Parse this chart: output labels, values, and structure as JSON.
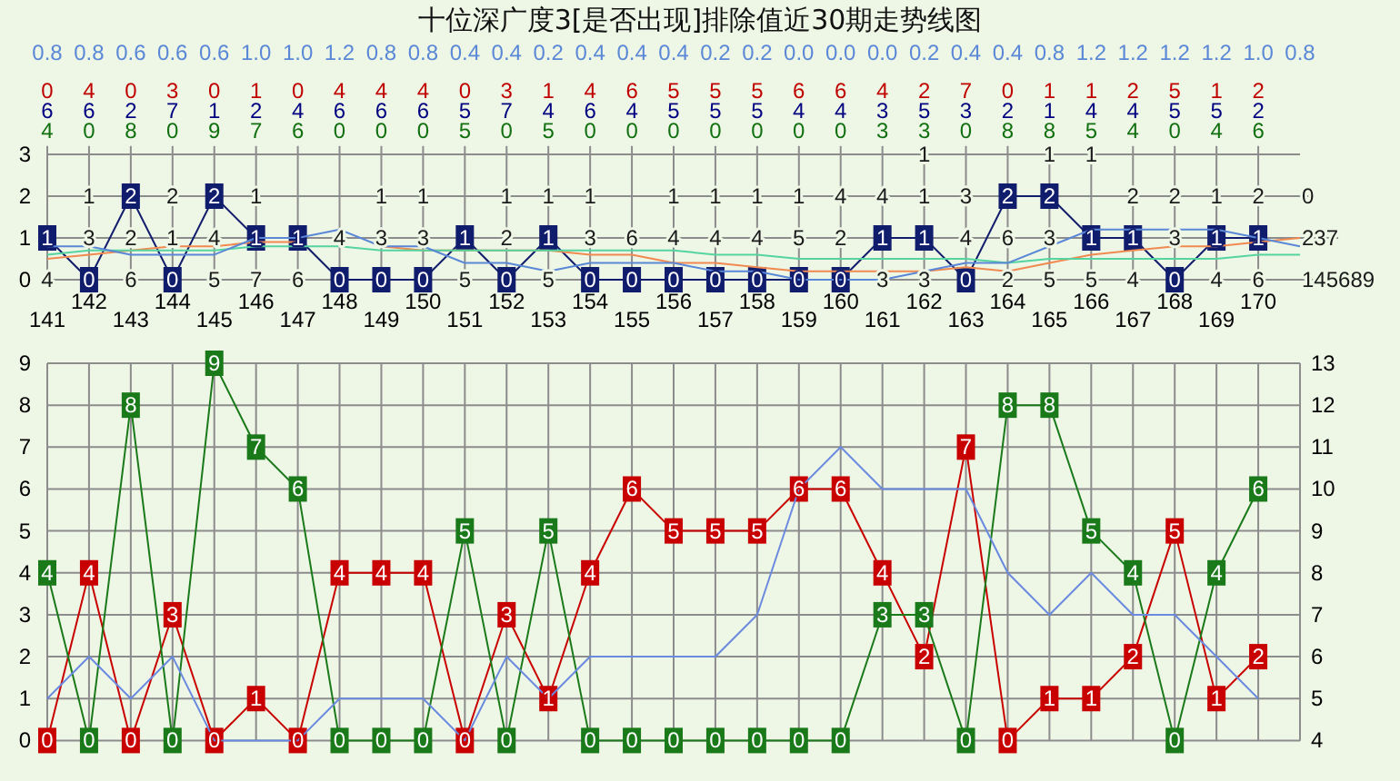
{
  "chart_data": [
    {
      "type": "line",
      "title": "十位深广度3[是否出现]排除值近30期走势线图",
      "categories": [
        "141",
        "142",
        "143",
        "144",
        "145",
        "146",
        "147",
        "148",
        "149",
        "150",
        "151",
        "152",
        "153",
        "154",
        "155",
        "156",
        "157",
        "158",
        "159",
        "160",
        "161",
        "162",
        "163",
        "164",
        "165",
        "166",
        "167",
        "168",
        "169",
        "170",
        null
      ],
      "ylim": [
        -0.2,
        3.2
      ],
      "yticks": [
        0,
        1,
        2,
        3
      ],
      "grid": "x",
      "data_labels": true,
      "ref_lines": [
        {
          "axis": "y",
          "value": 0
        },
        {
          "axis": "y",
          "value": 1
        },
        {
          "axis": "y",
          "value": 2
        },
        {
          "axis": "y",
          "value": 3
        }
      ],
      "series": [
        {
          "color": "#101c6c",
          "marker": "square",
          "values": [
            1,
            0,
            2,
            0,
            2,
            1,
            1,
            0,
            0,
            0,
            1,
            0,
            1,
            0,
            0,
            0,
            0,
            0,
            0,
            0,
            1,
            1,
            0,
            2,
            2,
            1,
            1,
            0,
            1,
            1,
            null
          ]
        },
        {
          "color": "#f08a50",
          "data_labels": false,
          "values": [
            0.5,
            0.6,
            0.7,
            0.8,
            0.8,
            0.9,
            0.9,
            null,
            0.8,
            0.7,
            0.7,
            0.7,
            0.7,
            0.6,
            0.6,
            0.4,
            0.4,
            0.3,
            0.2,
            0.2,
            0.2,
            0.2,
            0.3,
            0.2,
            0.4,
            0.6,
            0.7,
            0.8,
            0.8,
            0.9,
            1.0
          ]
        },
        {
          "color": "#55d4a0",
          "data_labels": false,
          "values": [
            0.6,
            0.7,
            0.7,
            0.7,
            0.7,
            0.8,
            0.8,
            0.8,
            0.7,
            0.7,
            0.7,
            0.7,
            0.7,
            0.7,
            0.7,
            0.7,
            0.6,
            0.6,
            0.5,
            0.5,
            0.5,
            0.5,
            0.5,
            0.4,
            0.5,
            0.5,
            0.5,
            0.5,
            0.5,
            0.6,
            0.6
          ]
        },
        {
          "color": "#5a88d6",
          "data_labels": false,
          "values": [
            0.8,
            0.8,
            0.6,
            0.6,
            0.6,
            1.0,
            1.0,
            1.2,
            0.8,
            0.8,
            0.4,
            0.4,
            0.2,
            0.4,
            0.4,
            0.4,
            0.2,
            0.2,
            0.0,
            0.0,
            0.0,
            0.2,
            0.4,
            0.4,
            0.8,
            1.2,
            1.2,
            1.2,
            1.2,
            1.0,
            0.8
          ],
          "value_labels": [
            "0.8",
            "0.8",
            "0.6",
            "0.6",
            "0.6",
            "1.0",
            "1.0",
            "1.2",
            "0.8",
            "0.8",
            "0.4",
            "0.4",
            "0.2",
            "0.4",
            "0.4",
            "0.4",
            "0.2",
            "0.2",
            "0.0",
            "0.0",
            "0.0",
            "0.2",
            "0.4",
            "0.4",
            "0.8",
            "1.2",
            "1.2",
            "1.2",
            "1.2",
            "1.0",
            "0.8"
          ]
        }
      ],
      "annotations": [
        "0 4 0 3 0 1 0 4 4 4 0 3 1 4 6 5 5 5 6 6 4 2 7 0 1 1 2 5 1 2",
        "6 6 2 7 1 2 4 6 6 6 5 7 4 6 4 5 5 5 4 4 3 5 3 2 1 4 4 5 5 2",
        "4 0 8 0 9 7 6 0 0 0 5 0 5 0 0 0 0 0 0 0 3 3 0 8 8 5 4 0 4 6",
        {
          "text": "4",
          "x": "141",
          "y": 0
        },
        {
          "text": "6",
          "x": "143",
          "y": 0
        },
        {
          "text": "5",
          "x": "145",
          "y": 0
        },
        {
          "text": "7",
          "x": "146",
          "y": 0
        },
        {
          "text": "6",
          "x": "147",
          "y": 0
        },
        {
          "text": "5",
          "x": "151",
          "y": 0
        },
        {
          "text": "5",
          "x": "153",
          "y": 0
        },
        {
          "text": "3",
          "x": "161",
          "y": 0
        },
        {
          "text": "3",
          "x": "162",
          "y": 0
        },
        {
          "text": "2",
          "x": "164",
          "y": 0
        },
        {
          "text": "5",
          "x": "165",
          "y": 0
        },
        {
          "text": "5",
          "x": "166",
          "y": 0
        },
        {
          "text": "4",
          "x": "167",
          "y": 0
        },
        {
          "text": "4",
          "x": "169",
          "y": 0
        },
        {
          "text": "6",
          "x": "170",
          "y": 0
        },
        {
          "text": "3",
          "x": "142",
          "y": 1
        },
        {
          "text": "2",
          "x": "143",
          "y": 1
        },
        {
          "text": "1",
          "x": "144",
          "y": 1
        },
        {
          "text": "4",
          "x": "145",
          "y": 1
        },
        {
          "text": "4",
          "x": "148",
          "y": 1
        },
        {
          "text": "3",
          "x": "149",
          "y": 1
        },
        {
          "text": "3",
          "x": "150",
          "y": 1
        },
        {
          "text": "2",
          "x": "152",
          "y": 1
        },
        {
          "text": "3",
          "x": "154",
          "y": 1
        },
        {
          "text": "6",
          "x": "155",
          "y": 1
        },
        {
          "text": "4",
          "x": "156",
          "y": 1
        },
        {
          "text": "4",
          "x": "157",
          "y": 1
        },
        {
          "text": "4",
          "x": "158",
          "y": 1
        },
        {
          "text": "5",
          "x": "159",
          "y": 1
        },
        {
          "text": "2",
          "x": "160",
          "y": 1
        },
        {
          "text": "4",
          "x": "163",
          "y": 1
        },
        {
          "text": "6",
          "x": "164",
          "y": 1
        },
        {
          "text": "3",
          "x": "165",
          "y": 1
        },
        {
          "text": "3",
          "x": "168",
          "y": 1
        },
        {
          "text": "1",
          "x": "142",
          "y": 2
        },
        {
          "text": "2",
          "x": "144",
          "y": 2
        },
        {
          "text": "1",
          "x": "146",
          "y": 2
        },
        {
          "text": "1",
          "x": "149",
          "y": 2
        },
        {
          "text": "1",
          "x": "150",
          "y": 2
        },
        {
          "text": "1",
          "x": "152",
          "y": 2
        },
        {
          "text": "1",
          "x": "153",
          "y": 2
        },
        {
          "text": "1",
          "x": "154",
          "y": 2
        },
        {
          "text": "1",
          "x": "156",
          "y": 2
        },
        {
          "text": "1",
          "x": "157",
          "y": 2
        },
        {
          "text": "1",
          "x": "158",
          "y": 2
        },
        {
          "text": "1",
          "x": "159",
          "y": 2
        },
        {
          "text": "4",
          "x": "160",
          "y": 2
        },
        {
          "text": "4",
          "x": "161",
          "y": 2
        },
        {
          "text": "1",
          "x": "162",
          "y": 2
        },
        {
          "text": "3",
          "x": "163",
          "y": 2
        },
        {
          "text": "2",
          "x": "167",
          "y": 2
        },
        {
          "text": "2",
          "x": "168",
          "y": 2
        },
        {
          "text": "1",
          "x": "169",
          "y": 2
        },
        {
          "text": "2",
          "x": "170",
          "y": 2
        },
        {
          "text": "1",
          "x": "162",
          "y": 3
        },
        {
          "text": "1",
          "x": "165",
          "y": 3
        },
        {
          "text": "1",
          "x": "166",
          "y": 3
        },
        {
          "text": "145689",
          "y": 0
        },
        {
          "text": "237",
          "y": 1
        },
        {
          "text": "0",
          "y": 2
        }
      ]
    },
    {
      "type": "line",
      "categories": [
        null,
        null,
        null,
        null,
        null,
        null,
        null,
        null,
        null,
        null,
        null,
        null,
        null,
        null,
        null,
        null,
        null,
        null,
        null,
        null,
        null,
        null,
        null,
        null,
        null,
        null,
        null,
        null,
        null,
        null,
        null
      ],
      "ylim": [
        0,
        9
      ],
      "yticks": [
        0,
        1,
        2,
        3,
        4,
        5,
        6,
        7,
        8,
        9
      ],
      "y2lim": [
        4,
        13
      ],
      "y2ticks": [
        4,
        5,
        6,
        7,
        8,
        9,
        10,
        11,
        12,
        13
      ],
      "grid": true,
      "series": [
        {
          "color": "#c80000",
          "marker": "square",
          "values": [
            0,
            4,
            0,
            3,
            0,
            1,
            0,
            4,
            4,
            4,
            0,
            3,
            1,
            4,
            6,
            5,
            5,
            5,
            6,
            6,
            4,
            2,
            7,
            0,
            1,
            1,
            2,
            5,
            1,
            2,
            null
          ],
          "value_labels": [
            "0",
            "4",
            "0",
            "3",
            "0",
            "1",
            "0",
            "4",
            "4",
            "4",
            "0",
            "3",
            "1",
            "4",
            "6",
            "5",
            "5",
            "5",
            "6",
            "6",
            "4",
            "2",
            "7",
            "0",
            "1",
            "1",
            "2",
            "5",
            "1",
            "2",
            null
          ]
        },
        {
          "color": "#1a7a1a",
          "marker": "square",
          "values": [
            4,
            0,
            8,
            0,
            9,
            7,
            6,
            0,
            0,
            0,
            5,
            0,
            5,
            0,
            0,
            0,
            0,
            0,
            0,
            0,
            3,
            3,
            0,
            8,
            8,
            5,
            4,
            0,
            4,
            6,
            null
          ],
          "value_labels": [
            "4",
            "0",
            "8",
            "0",
            "9",
            "7",
            "6",
            "0",
            "0",
            "0",
            "5",
            "0",
            "5",
            "0",
            "0",
            "0",
            "0",
            "0",
            "0",
            "0",
            "3",
            "3",
            "0",
            "8",
            "8",
            "5",
            "4",
            "0",
            "4",
            "6",
            null
          ]
        },
        {
          "color": "#6a8ae0",
          "axis": "y2",
          "values": [
            5,
            6,
            5,
            6,
            4,
            4,
            4,
            5,
            5,
            5,
            4,
            6,
            5,
            6,
            6,
            6,
            6,
            7,
            10,
            11,
            10,
            10,
            10,
            8,
            7,
            8,
            7,
            7,
            6,
            5,
            null
          ]
        }
      ]
    }
  ]
}
